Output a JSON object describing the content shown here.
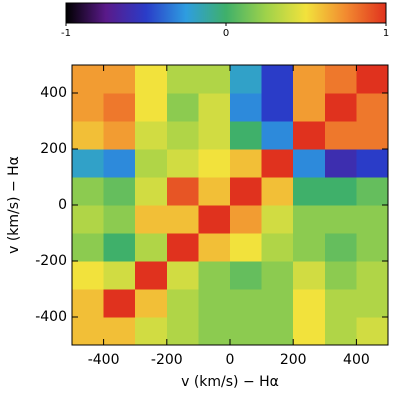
{
  "chart_data": {
    "type": "heatmap",
    "x_label": "v (km/s) − Hα",
    "y_label": "v (km/s) − Hα",
    "x": [
      -450,
      -350,
      -250,
      -150,
      -50,
      50,
      150,
      250,
      350,
      450
    ],
    "y": [
      -450,
      -350,
      -250,
      -150,
      -50,
      50,
      150,
      250,
      350,
      450
    ],
    "z": [
      [
        0.6,
        0.6,
        0.4,
        0.3,
        0.2,
        0.2,
        0.2,
        0.5,
        0.3,
        0.4
      ],
      [
        0.6,
        1,
        0.6,
        0.3,
        0.2,
        0.2,
        0.2,
        0.5,
        0.3,
        0.3
      ],
      [
        0.5,
        0.4,
        1,
        0.4,
        0.2,
        0.1,
        0.2,
        0.4,
        0.2,
        0.3
      ],
      [
        0.2,
        0.0,
        0.3,
        1,
        0.6,
        0.5,
        0.3,
        0.2,
        0.1,
        0.2
      ],
      [
        0.3,
        0.2,
        0.6,
        0.6,
        1,
        0.7,
        0.4,
        0.2,
        0.2,
        0.2
      ],
      [
        0.2,
        0.1,
        0.4,
        0.9,
        0.6,
        1,
        0.6,
        0.0,
        0.0,
        0.1
      ],
      [
        -0.2,
        -0.3,
        0.3,
        0.4,
        0.5,
        0.6,
        1,
        -0.3,
        -0.6,
        -0.5
      ],
      [
        0.6,
        0.7,
        0.4,
        0.3,
        0.4,
        0.0,
        -0.3,
        1,
        0.8,
        0.8
      ],
      [
        0.7,
        0.8,
        0.5,
        0.2,
        0.4,
        -0.3,
        -0.5,
        0.7,
        1,
        0.8
      ],
      [
        0.7,
        0.7,
        0.5,
        0.3,
        0.3,
        -0.2,
        -0.5,
        0.7,
        0.8,
        1
      ]
    ],
    "xlim": [
      -500,
      500
    ],
    "ylim": [
      -500,
      500
    ],
    "xticks": [
      -400,
      -200,
      0,
      200,
      400
    ],
    "yticks": [
      -400,
      -200,
      0,
      200,
      400
    ],
    "clim": [
      -1,
      1
    ],
    "cticks": [
      -1,
      0,
      1
    ],
    "colormap": [
      "#000000",
      "#5a1a8a",
      "#2a3cc8",
      "#2e9de0",
      "#3fb06a",
      "#9fd24a",
      "#f2e23c",
      "#f28a30",
      "#e0321e"
    ]
  }
}
